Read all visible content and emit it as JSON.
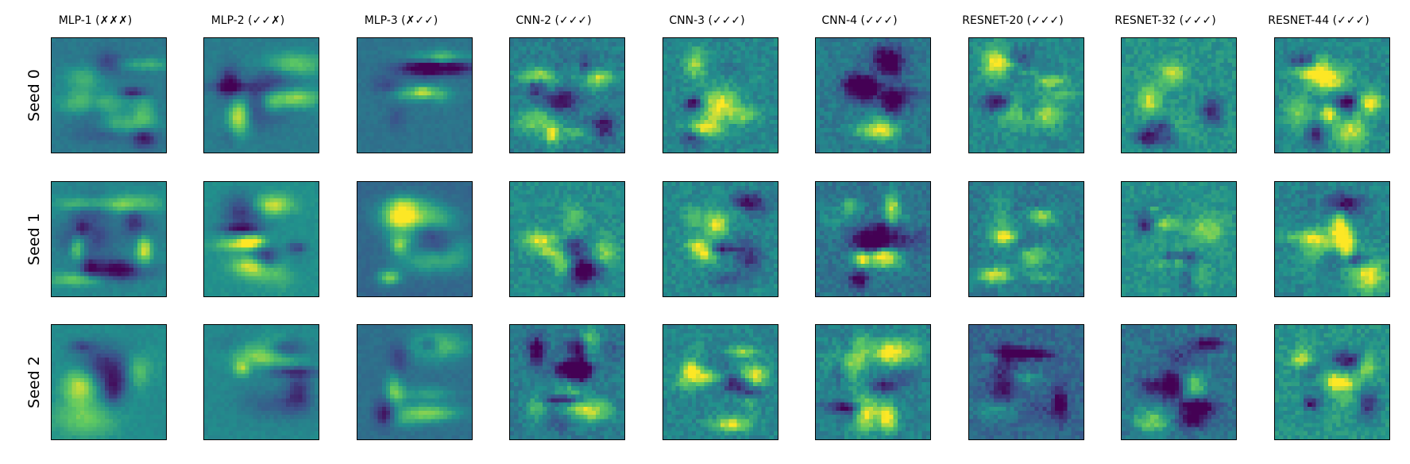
{
  "columns": [
    {
      "title": "MLP-1 (✗✗✗)"
    },
    {
      "title": "MLP-2 (✓✓✗)"
    },
    {
      "title": "MLP-3 (✗✓✓)"
    },
    {
      "title": "CNN-2 (✓✓✓)"
    },
    {
      "title": "CNN-3 (✓✓✓)"
    },
    {
      "title": "CNN-4 (✓✓✓)"
    },
    {
      "title": "RESNET-20 (✓✓✓)"
    },
    {
      "title": "RESNET-32 (✓✓✓)"
    },
    {
      "title": "RESNET-44 (✓✓✓)"
    }
  ],
  "rows": [
    {
      "label": "Seed 0"
    },
    {
      "label": "Seed 1"
    },
    {
      "label": "Seed 2"
    }
  ],
  "colormap": "viridis"
}
